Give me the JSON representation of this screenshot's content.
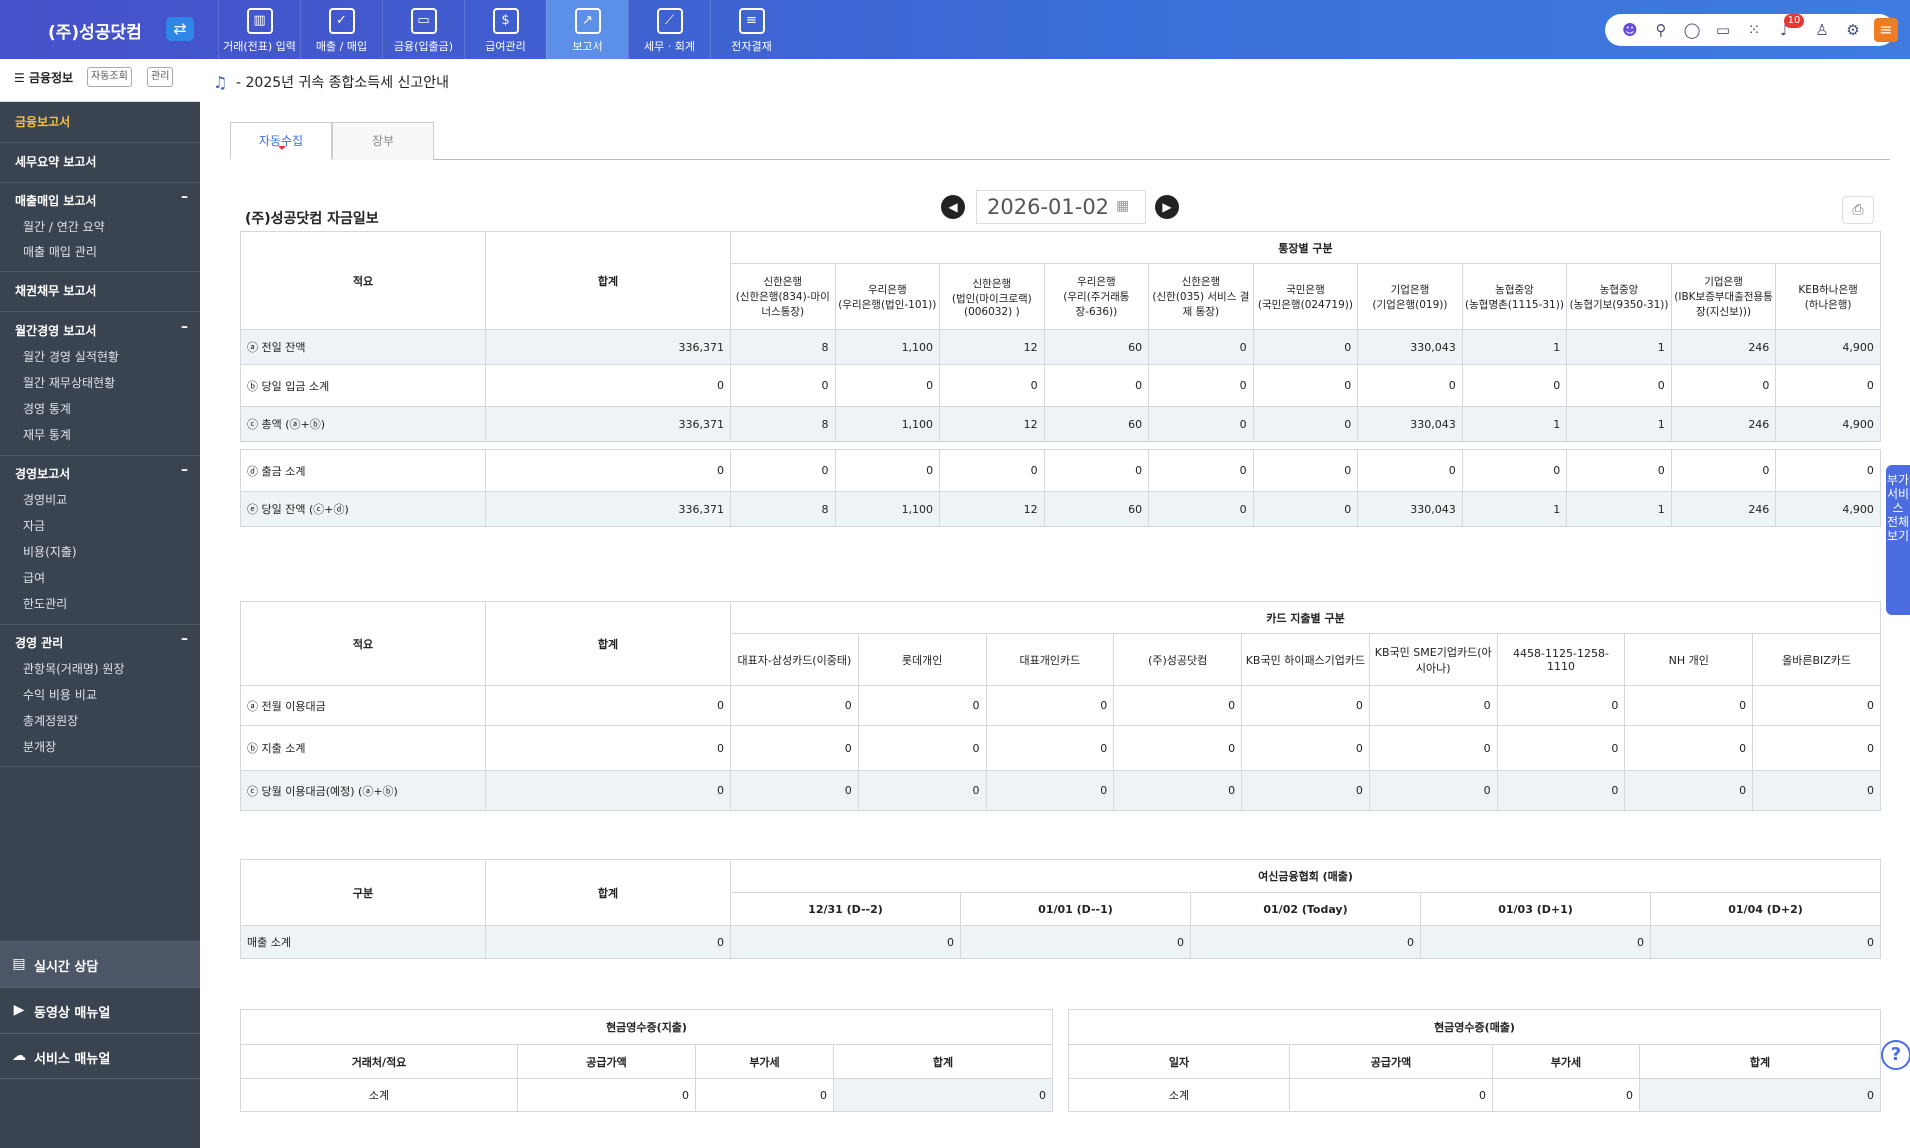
{
  "header": {
    "logo": "(주)성공닷컴",
    "switch_icon": "⇄",
    "nav": [
      {
        "label": "거래(전표) 입력",
        "icon": "building-icon",
        "glyph": "▥"
      },
      {
        "label": "매출 / 매입",
        "icon": "clipboard-icon",
        "glyph": "✓"
      },
      {
        "label": "금융(입출금)",
        "icon": "card-icon",
        "glyph": "▭"
      },
      {
        "label": "급여관리",
        "icon": "people-icon",
        "glyph": "$"
      },
      {
        "label": "보고서",
        "icon": "chart-icon",
        "glyph": "↗",
        "active": true
      },
      {
        "label": "세무 · 회계",
        "icon": "board-icon",
        "glyph": "⟋"
      },
      {
        "label": "전자결재",
        "icon": "printer-icon",
        "glyph": "≡"
      }
    ],
    "notification_count": "10"
  },
  "sidebar": {
    "title": "금융정보",
    "btn_auto": "자동조회",
    "btn_manage": "관리",
    "finance_report": "금융보고서",
    "tax_summary": "세무요약 보고서",
    "sales_purchase": "매출매입 보고서",
    "sp_items": [
      "월간 / 연간 요약",
      "매출 매입 관리"
    ],
    "receivables": "채권채무 보고서",
    "monthly_mgmt": "월간경영 보고서",
    "mm_items": [
      "월간 경영 실적현황",
      "월간 재무상태현황",
      "경영 통계",
      "재무 통계"
    ],
    "mgmt_report": "경영보고서",
    "mr_items": [
      "경영비교",
      "자금",
      "비용(지출)",
      "급여",
      "한도관리"
    ],
    "mgmt": "경영 관리",
    "mg_items": [
      "관항목(거래명) 원장",
      "수익 비용 비교",
      "총계정원장",
      "분개장"
    ],
    "bottom": [
      {
        "label": "실시간 상담",
        "icon": "chat-icon",
        "glyph": "▤"
      },
      {
        "label": "동영상 매뉴얼",
        "icon": "video-icon",
        "glyph": "▶"
      },
      {
        "label": "서비스 매뉴얼",
        "icon": "cloud-icon",
        "glyph": "☁"
      }
    ]
  },
  "notice": "- 2025년 귀속 종합소득세 신고안내",
  "tabs": [
    "자동수집",
    "장부"
  ],
  "report": {
    "title": "(주)성공닷컴 자금일보",
    "date": "2026-01-02"
  },
  "bank": {
    "group": "통장별 구분",
    "h_desc": "적요",
    "h_total": "합계",
    "cols": [
      [
        "신한은행",
        "(신한은행(834)-마이너스통장)"
      ],
      [
        "우리은행",
        "(우리은행(법인-101))"
      ],
      [
        "신한은행",
        "(법인(마이크로랙) (006032) )"
      ],
      [
        "우리은행",
        "(우리(주거래통장-636))"
      ],
      [
        "신한은행",
        "(신한(035) 서비스 결제 통장)"
      ],
      [
        "국민은행",
        "(국민은행(024719))"
      ],
      [
        "기업은행",
        "(기업은행(019))"
      ],
      [
        "농협중앙",
        "(농협명촌(1115-31))"
      ],
      [
        "농협중앙",
        "(농협기보(9350-31))"
      ],
      [
        "기업은행",
        "(IBK보증부대출전용통장(지신보)))"
      ],
      [
        "KEB하나은행",
        "(하나은행)"
      ]
    ],
    "rows": [
      {
        "label": "ⓐ 전일 잔액",
        "total": "336,371",
        "vals": [
          "8",
          "1,100",
          "12",
          "60",
          "0",
          "0",
          "330,043",
          "1",
          "1",
          "246",
          "4,900"
        ]
      },
      {
        "label": "ⓑ 당일 입금 소계",
        "total": "0",
        "vals": [
          "0",
          "0",
          "0",
          "0",
          "0",
          "0",
          "0",
          "0",
          "0",
          "0",
          "0"
        ]
      },
      {
        "label": "ⓒ 총액 (ⓐ+ⓑ)",
        "total": "336,371",
        "vals": [
          "8",
          "1,100",
          "12",
          "60",
          "0",
          "0",
          "330,043",
          "1",
          "1",
          "246",
          "4,900"
        ]
      },
      {
        "label": "ⓓ 출금 소계",
        "total": "0",
        "vals": [
          "0",
          "0",
          "0",
          "0",
          "0",
          "0",
          "0",
          "0",
          "0",
          "0",
          "0"
        ]
      },
      {
        "label": "ⓔ 당일 잔액 (ⓒ+ⓓ)",
        "total": "336,371",
        "vals": [
          "8",
          "1,100",
          "12",
          "60",
          "0",
          "0",
          "330,043",
          "1",
          "1",
          "246",
          "4,900"
        ]
      }
    ]
  },
  "card": {
    "group": "카드 지출별 구분",
    "h_desc": "적요",
    "h_total": "합계",
    "cols": [
      "대표자-삼성카드(이중태)",
      "롯데개인",
      "대표개인카드",
      "(주)성공닷컴",
      "KB국민 하이패스기업카드",
      "KB국민 SME기업카드(아시아나)",
      "4458-1125-1258-1110",
      "NH 개인",
      "올바른BIZ카드"
    ],
    "rows": [
      {
        "label": "ⓐ 전월 이용대금",
        "total": "0",
        "vals": [
          "0",
          "0",
          "0",
          "0",
          "0",
          "0",
          "0",
          "0",
          "0"
        ]
      },
      {
        "label": "ⓑ 지출 소계",
        "total": "0",
        "vals": [
          "0",
          "0",
          "0",
          "0",
          "0",
          "0",
          "0",
          "0",
          "0"
        ]
      },
      {
        "label": "ⓒ 당월 이용대금(예정) (ⓐ+ⓑ)",
        "total": "0",
        "vals": [
          "0",
          "0",
          "0",
          "0",
          "0",
          "0",
          "0",
          "0",
          "0"
        ]
      }
    ]
  },
  "credit": {
    "h_div": "구분",
    "h_total": "합계",
    "group": "여신금융협회 (매출)",
    "cols": [
      "12/31 (D--2)",
      "01/01 (D--1)",
      "01/02 (Today)",
      "01/03 (D+1)",
      "01/04 (D+2)"
    ],
    "row": {
      "label": "매출 소계",
      "total": "0",
      "vals": [
        "0",
        "0",
        "0",
        "0",
        "0"
      ]
    }
  },
  "cash_out": {
    "title": "현금영수증(지출)",
    "cols": [
      "거래처/적요",
      "공급가액",
      "부가세",
      "합계"
    ],
    "row": [
      "소계",
      "0",
      "0",
      "0"
    ]
  },
  "cash_in": {
    "title": "현금영수증(매출)",
    "cols": [
      "일자",
      "공급가액",
      "부가세",
      "합계"
    ],
    "row": [
      "소계",
      "0",
      "0",
      "0"
    ]
  },
  "side_tab": "부가서비스 전체보기",
  "help": "?"
}
